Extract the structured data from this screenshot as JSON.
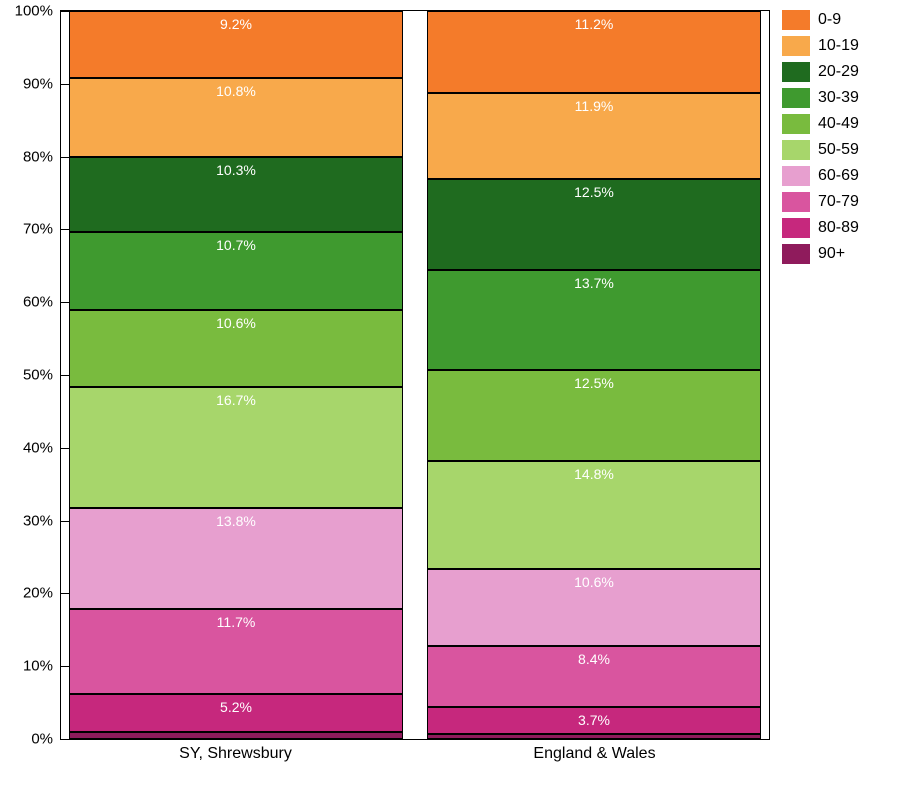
{
  "chart": {
    "type": "stacked-bar-percent",
    "background_color": "#ffffff",
    "border_color": "#000000",
    "ylim": [
      0,
      100
    ],
    "ytick_step": 10,
    "yticks": [
      {
        "value": 0,
        "label": "0%"
      },
      {
        "value": 10,
        "label": "10%"
      },
      {
        "value": 20,
        "label": "20%"
      },
      {
        "value": 30,
        "label": "30%"
      },
      {
        "value": 40,
        "label": "40%"
      },
      {
        "value": 50,
        "label": "50%"
      },
      {
        "value": 60,
        "label": "60%"
      },
      {
        "value": 70,
        "label": "70%"
      },
      {
        "value": 80,
        "label": "80%"
      },
      {
        "value": 90,
        "label": "90%"
      },
      {
        "value": 100,
        "label": "100%"
      }
    ],
    "tick_fontsize": 15,
    "xlabel_fontsize": 16,
    "value_label_fontsize": 14,
    "value_label_color": "#ffffff",
    "value_label_min_pct": 1.2,
    "categories": [
      {
        "name": "SY, Shrewsbury",
        "segments": [
          {
            "series": "90+",
            "value": 1.0,
            "label": ""
          },
          {
            "series": "80-89",
            "value": 5.2,
            "label": "5.2%"
          },
          {
            "series": "70-79",
            "value": 11.7,
            "label": "11.7%"
          },
          {
            "series": "60-69",
            "value": 13.8,
            "label": "13.8%"
          },
          {
            "series": "50-59",
            "value": 16.7,
            "label": "16.7%"
          },
          {
            "series": "40-49",
            "value": 10.6,
            "label": "10.6%"
          },
          {
            "series": "30-39",
            "value": 10.7,
            "label": "10.7%"
          },
          {
            "series": "20-29",
            "value": 10.3,
            "label": "10.3%"
          },
          {
            "series": "10-19",
            "value": 10.8,
            "label": "10.8%"
          },
          {
            "series": "0-9",
            "value": 9.2,
            "label": "9.2%"
          }
        ]
      },
      {
        "name": "England & Wales",
        "segments": [
          {
            "series": "90+",
            "value": 0.7,
            "label": ""
          },
          {
            "series": "80-89",
            "value": 3.7,
            "label": "3.7%"
          },
          {
            "series": "70-79",
            "value": 8.4,
            "label": "8.4%"
          },
          {
            "series": "60-69",
            "value": 10.6,
            "label": "10.6%"
          },
          {
            "series": "50-59",
            "value": 14.8,
            "label": "14.8%"
          },
          {
            "series": "40-49",
            "value": 12.5,
            "label": "12.5%"
          },
          {
            "series": "30-39",
            "value": 13.7,
            "label": "13.7%"
          },
          {
            "series": "20-29",
            "value": 12.5,
            "label": "12.5%"
          },
          {
            "series": "10-19",
            "value": 11.9,
            "label": "11.9%"
          },
          {
            "series": "0-9",
            "value": 11.2,
            "label": "11.2%"
          }
        ]
      }
    ],
    "series_colors": {
      "0-9": "#f47b2a",
      "10-19": "#f8a94b",
      "20-29": "#1f6b1f",
      "30-39": "#3f9a2f",
      "40-49": "#79bb3e",
      "50-59": "#a7d66b",
      "60-69": "#e79fcf",
      "70-79": "#d9559f",
      "80-89": "#c6287d",
      "90+": "#8f1b5c"
    },
    "legend": {
      "position": "right",
      "label_fontsize": 16,
      "items": [
        {
          "series": "0-9",
          "label": "0-9"
        },
        {
          "series": "10-19",
          "label": "10-19"
        },
        {
          "series": "20-29",
          "label": "20-29"
        },
        {
          "series": "30-39",
          "label": "30-39"
        },
        {
          "series": "40-49",
          "label": "40-49"
        },
        {
          "series": "50-59",
          "label": "50-59"
        },
        {
          "series": "60-69",
          "label": "60-69"
        },
        {
          "series": "70-79",
          "label": "70-79"
        },
        {
          "series": "80-89",
          "label": "80-89"
        },
        {
          "series": "90+",
          "label": "90+"
        }
      ]
    }
  }
}
